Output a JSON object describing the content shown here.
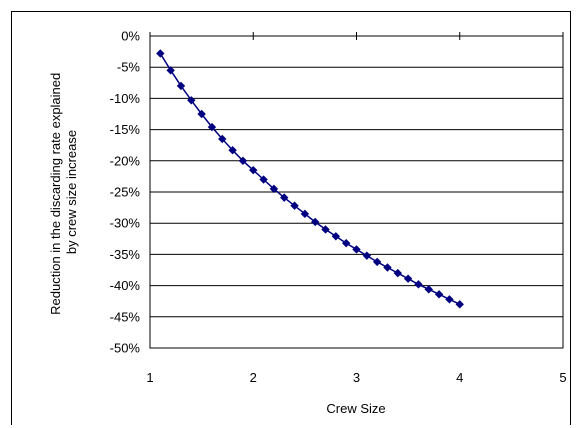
{
  "chart_data": {
    "type": "scatter",
    "title": "",
    "xlabel": "Crew Size",
    "ylabel_lines": [
      "Reduction in the discarding rate explained",
      "by crew size increase"
    ],
    "xlim": [
      1,
      5
    ],
    "ylim": [
      -50,
      0
    ],
    "x_ticks": [
      "1",
      "2",
      "3",
      "4",
      "5"
    ],
    "y_ticks": [
      "0%",
      "-5%",
      "-10%",
      "-15%",
      "-20%",
      "-25%",
      "-30%",
      "-35%",
      "-40%",
      "-45%",
      "-50%"
    ],
    "grid": "horizontal",
    "legend": "none",
    "series_color": "#000080",
    "x": [
      1.1,
      1.2,
      1.3,
      1.4,
      1.5,
      1.6,
      1.7,
      1.8,
      1.9,
      2.0,
      2.1,
      2.2,
      2.3,
      2.4,
      2.5,
      2.6,
      2.7,
      2.8,
      2.9,
      3.0,
      3.1,
      3.2,
      3.3,
      3.4,
      3.5,
      3.6,
      3.7,
      3.8,
      3.9,
      4.0
    ],
    "y": [
      -2.8,
      -5.5,
      -8.0,
      -10.3,
      -12.5,
      -14.6,
      -16.5,
      -18.3,
      -20.0,
      -21.5,
      -23.0,
      -24.5,
      -25.9,
      -27.2,
      -28.5,
      -29.8,
      -31.0,
      -32.1,
      -33.2,
      -34.2,
      -35.2,
      -36.2,
      -37.1,
      -38.0,
      -38.9,
      -39.8,
      -40.6,
      -41.4,
      -42.2,
      -43.0
    ]
  }
}
